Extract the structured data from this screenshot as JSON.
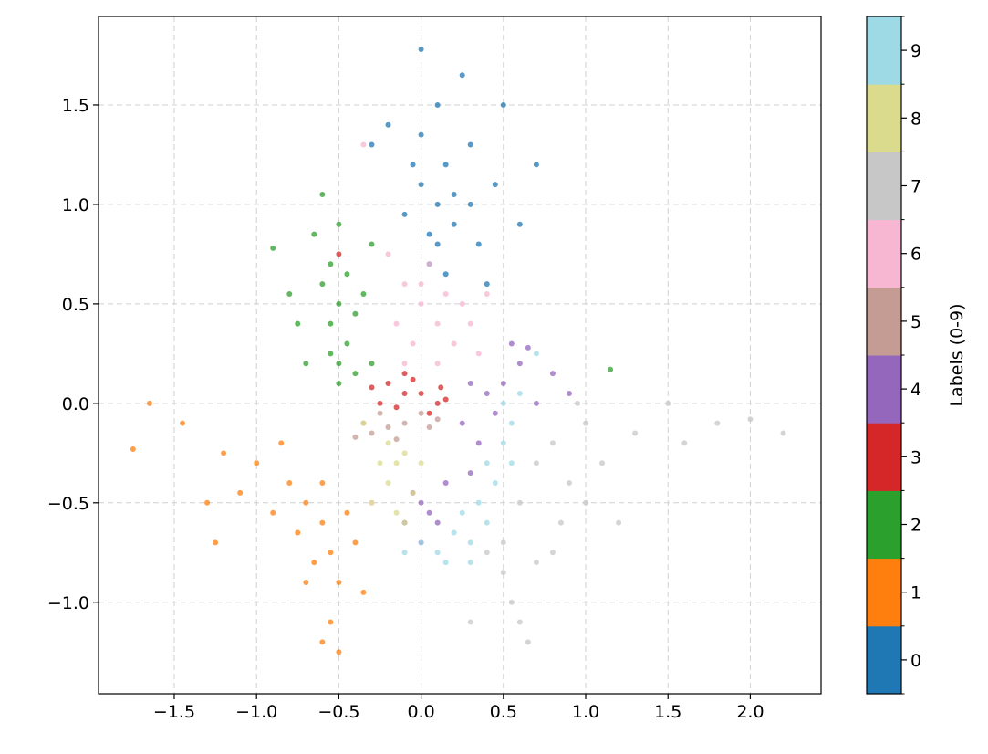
{
  "chart_data": {
    "type": "scatter",
    "title": "",
    "xlabel": "",
    "ylabel": "",
    "xlim": [
      -1.96,
      2.43
    ],
    "ylim": [
      -1.46,
      1.945
    ],
    "grid": true,
    "grid_style": "dashed",
    "xticks": [
      -1.5,
      -1.0,
      -0.5,
      0.0,
      0.5,
      1.0,
      1.5,
      2.0
    ],
    "xtick_labels": [
      "−1.5",
      "−1.0",
      "−0.5",
      "0.0",
      "0.5",
      "1.0",
      "1.5",
      "2.0"
    ],
    "yticks": [
      -1.0,
      -0.5,
      0.0,
      0.5,
      1.0,
      1.5
    ],
    "ytick_labels": [
      "−1.0",
      "−0.5",
      "0.0",
      "0.5",
      "1.0",
      "1.5"
    ],
    "colorbar": {
      "label": "Labels (0-9)",
      "range": [
        -0.5,
        9.5
      ],
      "ticks": [
        "0",
        "1",
        "2",
        "3",
        "4",
        "5",
        "6",
        "7",
        "8",
        "9"
      ]
    },
    "series": [
      {
        "label": 0,
        "color": "#1f77b4",
        "points": [
          [
            0.1,
            1.0
          ],
          [
            0.05,
            0.85
          ],
          [
            0.15,
            1.2
          ],
          [
            0.0,
            1.1
          ],
          [
            0.2,
            0.9
          ],
          [
            0.3,
            1.3
          ],
          [
            0.1,
            1.5
          ],
          [
            0.25,
            1.65
          ],
          [
            0.0,
            1.78
          ],
          [
            0.45,
            1.1
          ],
          [
            0.6,
            0.9
          ],
          [
            0.5,
            1.5
          ],
          [
            -0.2,
            1.4
          ],
          [
            -0.3,
            1.3
          ],
          [
            0.05,
            0.7
          ],
          [
            0.15,
            0.65
          ],
          [
            0.35,
            0.8
          ],
          [
            0.7,
            1.2
          ],
          [
            -0.1,
            0.95
          ],
          [
            0.2,
            1.05
          ],
          [
            0.4,
            0.6
          ],
          [
            0.0,
            1.35
          ],
          [
            0.3,
            1.0
          ],
          [
            0.1,
            0.8
          ],
          [
            -0.05,
            1.2
          ]
        ]
      },
      {
        "label": 1,
        "color": "#ff7f0e",
        "points": [
          [
            -0.6,
            -0.6
          ],
          [
            -0.7,
            -0.5
          ],
          [
            -0.55,
            -0.75
          ],
          [
            -0.8,
            -0.4
          ],
          [
            -1.0,
            -0.3
          ],
          [
            -1.2,
            -0.25
          ],
          [
            -1.45,
            -0.1
          ],
          [
            -1.75,
            -0.23
          ],
          [
            -1.65,
            0.0
          ],
          [
            -0.5,
            -0.9
          ],
          [
            -0.55,
            -1.1
          ],
          [
            -0.5,
            -1.25
          ],
          [
            -0.65,
            -0.8
          ],
          [
            -0.9,
            -0.55
          ],
          [
            -1.1,
            -0.45
          ],
          [
            -0.4,
            -0.7
          ],
          [
            -0.35,
            -0.95
          ],
          [
            -0.75,
            -0.65
          ],
          [
            -0.6,
            -0.4
          ],
          [
            -1.3,
            -0.5
          ],
          [
            -0.85,
            -0.2
          ],
          [
            -0.45,
            -0.55
          ],
          [
            -0.7,
            -0.9
          ],
          [
            -1.25,
            -0.7
          ],
          [
            -0.6,
            -1.2
          ]
        ]
      },
      {
        "label": 2,
        "color": "#2ca02c",
        "points": [
          [
            -0.5,
            0.5
          ],
          [
            -0.55,
            0.7
          ],
          [
            -0.45,
            0.3
          ],
          [
            -0.6,
            0.6
          ],
          [
            -0.4,
            0.45
          ],
          [
            -0.5,
            0.2
          ],
          [
            -0.65,
            0.85
          ],
          [
            -0.6,
            1.05
          ],
          [
            -0.9,
            0.78
          ],
          [
            -0.75,
            0.4
          ],
          [
            -0.35,
            0.55
          ],
          [
            -0.5,
            0.1
          ],
          [
            -0.55,
            0.25
          ],
          [
            -0.3,
            0.8
          ],
          [
            -0.7,
            0.2
          ],
          [
            -0.45,
            0.65
          ],
          [
            -0.4,
            0.15
          ],
          [
            -0.8,
            0.55
          ],
          [
            -0.55,
            0.4
          ],
          [
            -0.3,
            0.2
          ],
          [
            1.15,
            0.17
          ],
          [
            -0.5,
            0.9
          ]
        ]
      },
      {
        "label": 3,
        "color": "#d62728",
        "points": [
          [
            -0.1,
            0.05
          ],
          [
            -0.2,
            0.1
          ],
          [
            0.1,
            0.0
          ],
          [
            0.0,
            0.05
          ],
          [
            -0.15,
            -0.02
          ],
          [
            -0.3,
            0.08
          ],
          [
            0.15,
            0.02
          ],
          [
            -0.05,
            0.12
          ],
          [
            -0.25,
            0.0
          ],
          [
            0.05,
            -0.05
          ],
          [
            -0.1,
            0.15
          ],
          [
            -0.5,
            0.75
          ],
          [
            0.12,
            0.08
          ]
        ]
      },
      {
        "label": 4,
        "color": "#9467bd",
        "points": [
          [
            0.5,
            0.1
          ],
          [
            0.6,
            0.2
          ],
          [
            0.4,
            0.05
          ],
          [
            0.7,
            0.0
          ],
          [
            0.55,
            0.3
          ],
          [
            0.8,
            0.15
          ],
          [
            0.3,
            0.1
          ],
          [
            0.35,
            -0.2
          ],
          [
            0.3,
            -0.35
          ],
          [
            0.25,
            -0.1
          ],
          [
            0.0,
            -0.5
          ],
          [
            0.05,
            -0.55
          ],
          [
            -0.05,
            -0.45
          ],
          [
            0.1,
            -0.6
          ],
          [
            0.15,
            -0.4
          ],
          [
            -0.1,
            -0.6
          ],
          [
            0.0,
            -0.7
          ],
          [
            0.65,
            0.28
          ],
          [
            0.9,
            0.05
          ],
          [
            0.45,
            -0.05
          ]
        ]
      },
      {
        "label": 5,
        "color": "#c49c94",
        "points": [
          [
            -0.2,
            -0.12
          ],
          [
            -0.1,
            -0.1
          ],
          [
            -0.3,
            -0.15
          ],
          [
            -0.35,
            -0.1
          ],
          [
            0.0,
            -0.05
          ],
          [
            -0.25,
            -0.05
          ],
          [
            0.05,
            -0.12
          ],
          [
            -0.15,
            -0.18
          ],
          [
            -0.4,
            -0.17
          ],
          [
            0.1,
            -0.08
          ]
        ]
      },
      {
        "label": 6,
        "color": "#f7b6d2",
        "points": [
          [
            0.0,
            0.5
          ],
          [
            -0.1,
            0.6
          ],
          [
            0.1,
            0.4
          ],
          [
            0.15,
            0.55
          ],
          [
            -0.15,
            0.4
          ],
          [
            0.2,
            0.3
          ],
          [
            0.05,
            0.7
          ],
          [
            -0.2,
            0.75
          ],
          [
            0.25,
            0.5
          ],
          [
            -0.05,
            0.3
          ],
          [
            0.3,
            0.4
          ],
          [
            -0.1,
            0.2
          ],
          [
            0.4,
            0.55
          ],
          [
            -0.3,
            -0.5
          ],
          [
            -0.35,
            1.3
          ],
          [
            0.35,
            0.25
          ],
          [
            0.0,
            0.6
          ],
          [
            0.1,
            0.2
          ]
        ]
      },
      {
        "label": 7,
        "color": "#c7c7c7",
        "points": [
          [
            0.7,
            -0.3
          ],
          [
            0.8,
            -0.2
          ],
          [
            0.9,
            -0.4
          ],
          [
            0.6,
            -0.5
          ],
          [
            1.0,
            -0.1
          ],
          [
            1.1,
            -0.3
          ],
          [
            1.3,
            -0.15
          ],
          [
            1.5,
            0.0
          ],
          [
            1.8,
            -0.1
          ],
          [
            2.0,
            -0.08
          ],
          [
            2.2,
            -0.15
          ],
          [
            0.5,
            -0.85
          ],
          [
            0.55,
            -1.0
          ],
          [
            0.6,
            -1.1
          ],
          [
            0.4,
            -0.75
          ],
          [
            0.3,
            -1.1
          ],
          [
            0.7,
            -0.8
          ],
          [
            0.85,
            -0.6
          ],
          [
            1.2,
            -0.6
          ],
          [
            0.95,
            0.0
          ],
          [
            0.8,
            -0.75
          ],
          [
            0.5,
            -0.7
          ],
          [
            0.65,
            -1.2
          ],
          [
            1.0,
            -0.5
          ],
          [
            1.6,
            -0.2
          ]
        ]
      },
      {
        "label": 8,
        "color": "#dbdb8d",
        "points": [
          [
            -0.15,
            -0.3
          ],
          [
            -0.2,
            -0.4
          ],
          [
            -0.1,
            -0.25
          ],
          [
            -0.25,
            -0.3
          ],
          [
            -0.05,
            -0.45
          ],
          [
            -0.3,
            -0.5
          ],
          [
            -0.15,
            -0.55
          ],
          [
            -0.35,
            -0.1
          ],
          [
            0.0,
            -0.3
          ],
          [
            -0.1,
            -0.6
          ],
          [
            -0.2,
            -0.2
          ]
        ]
      },
      {
        "label": 9,
        "color": "#9edae5",
        "points": [
          [
            0.4,
            -0.3
          ],
          [
            0.5,
            -0.2
          ],
          [
            0.45,
            -0.4
          ],
          [
            0.55,
            -0.1
          ],
          [
            0.35,
            -0.5
          ],
          [
            0.2,
            -0.65
          ],
          [
            0.3,
            -0.7
          ],
          [
            0.1,
            -0.75
          ],
          [
            0.0,
            -0.7
          ],
          [
            0.25,
            -0.55
          ],
          [
            0.6,
            0.05
          ],
          [
            0.7,
            0.25
          ],
          [
            0.5,
            0.0
          ],
          [
            -0.1,
            -0.75
          ],
          [
            0.4,
            -0.6
          ],
          [
            0.3,
            -0.8
          ],
          [
            0.15,
            -0.8
          ],
          [
            0.55,
            -0.3
          ]
        ]
      }
    ]
  }
}
